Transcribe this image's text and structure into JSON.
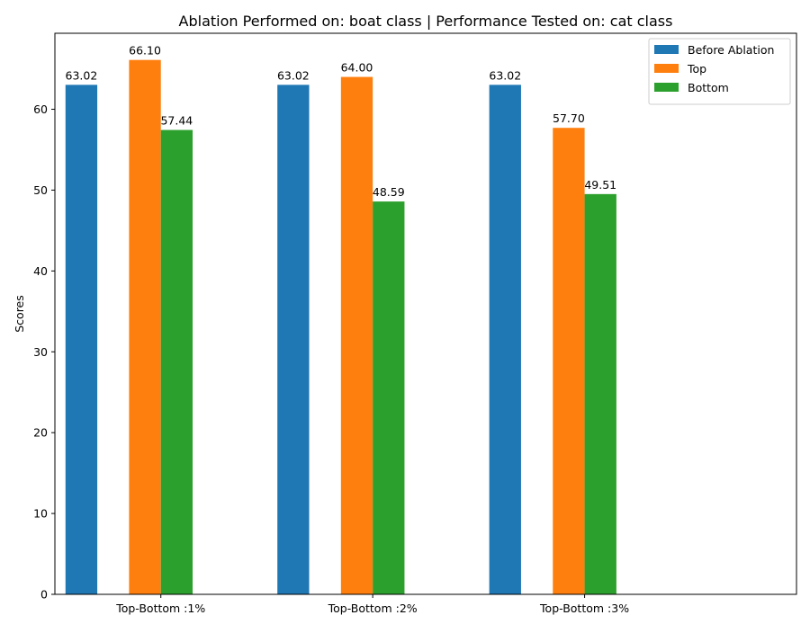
{
  "chart_data": {
    "type": "bar",
    "title": "Ablation Performed on: boat class | Performance Tested on: cat class",
    "xlabel": "",
    "ylabel": "Scores",
    "categories": [
      "Top-Bottom :1%",
      "Top-Bottom :2%",
      "Top-Bottom :3%"
    ],
    "series": [
      {
        "name": "Before Ablation",
        "color": "#1f77b4",
        "values": [
          63.02,
          63.02,
          63.02
        ],
        "labels": [
          "63.02",
          "63.02",
          "63.02"
        ]
      },
      {
        "name": "Top",
        "color": "#ff7f0e",
        "values": [
          66.1,
          64.0,
          57.7
        ],
        "labels": [
          "66.10",
          "64.00",
          "57.70"
        ]
      },
      {
        "name": "Bottom",
        "color": "#2ca02c",
        "values": [
          57.44,
          48.59,
          49.51
        ],
        "labels": [
          "57.44",
          "48.59",
          "49.51"
        ]
      }
    ],
    "ylim": [
      0,
      69.4
    ],
    "xlim": [
      -0.5,
      3.0
    ],
    "yticks": [
      0,
      10,
      20,
      30,
      40,
      50,
      60
    ],
    "grid": false,
    "legend_position": "top-right"
  }
}
